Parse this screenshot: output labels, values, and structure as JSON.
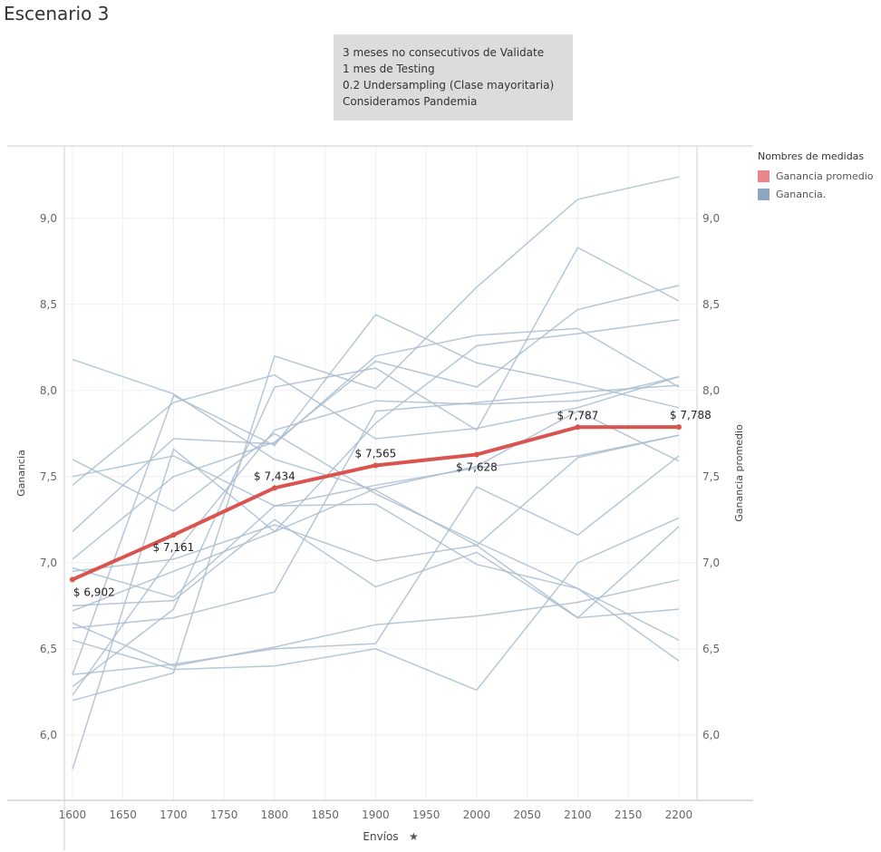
{
  "page": {
    "title": "Escenario 3",
    "note_lines": [
      "3 meses no consecutivos de Validate",
      "1 mes de Testing",
      "0.2 Undersampling (Clase mayoritaria)",
      "Consideramos Pandemia"
    ]
  },
  "legend": {
    "title": "Nombres de medidas",
    "items": [
      {
        "label": "Ganancia promedio",
        "color": "#e8868a"
      },
      {
        "label": "Ganancia.",
        "color": "#8aa6c1"
      }
    ]
  },
  "chart_data": {
    "type": "line",
    "xlabel": "Envíos",
    "ylabel_left": "Ganancia",
    "ylabel_right": "Ganancia promedio",
    "x_ticks": [
      1600,
      1650,
      1700,
      1750,
      1800,
      1850,
      1900,
      1950,
      2000,
      2050,
      2100,
      2150,
      2200
    ],
    "y_ticks": [
      "6,0",
      "6,5",
      "7,0",
      "7,5",
      "8,0",
      "8,5",
      "9,0"
    ],
    "y_tick_values": [
      6.0,
      6.5,
      7.0,
      7.5,
      8.0,
      8.5,
      9.0
    ],
    "xlim": [
      1592,
      2218
    ],
    "ylim": [
      5.62,
      9.42
    ],
    "grid": true,
    "legend_position": "top-right",
    "x": [
      1600,
      1700,
      1800,
      1900,
      2000,
      2100,
      2200
    ],
    "average_series": {
      "name": "Ganancia promedio",
      "color": "#d9534f",
      "values": [
        6.902,
        7.161,
        7.434,
        7.565,
        7.628,
        7.787,
        7.788
      ],
      "labels": [
        "$ 6,902",
        "$ 7,161",
        "$ 7,434",
        "$ 7,565",
        "$ 7,628",
        "$ 7,787",
        "$ 7,788"
      ]
    },
    "series_color": "#a9bdd0",
    "series": [
      {
        "values": [
          8.18,
          7.98,
          7.6,
          7.42,
          7.1,
          6.68,
          6.73
        ]
      },
      {
        "values": [
          7.6,
          7.3,
          7.75,
          7.4,
          7.12,
          6.85,
          6.55
        ]
      },
      {
        "values": [
          7.5,
          7.62,
          7.33,
          7.45,
          7.55,
          7.62,
          7.74
        ]
      },
      {
        "values": [
          7.45,
          7.93,
          8.09,
          7.72,
          7.78,
          7.9,
          8.08
        ]
      },
      {
        "values": [
          7.18,
          7.72,
          7.69,
          8.2,
          8.32,
          8.36,
          8.02
        ]
      },
      {
        "values": [
          7.02,
          7.5,
          7.7,
          8.17,
          8.02,
          8.47,
          8.61
        ]
      },
      {
        "values": [
          6.97,
          6.8,
          7.33,
          7.34,
          6.99,
          6.85,
          6.43
        ]
      },
      {
        "values": [
          6.95,
          7.02,
          7.22,
          7.01,
          7.1,
          7.61,
          7.74
        ]
      },
      {
        "values": [
          6.75,
          6.78,
          7.25,
          6.86,
          7.06,
          6.68,
          7.21
        ]
      },
      {
        "values": [
          6.72,
          6.95,
          7.18,
          7.43,
          7.56,
          7.88,
          7.59
        ]
      },
      {
        "values": [
          6.65,
          6.4,
          6.51,
          6.64,
          6.69,
          6.77,
          6.9
        ]
      },
      {
        "values": [
          6.62,
          6.68,
          6.83,
          7.88,
          7.93,
          7.99,
          8.03
        ]
      },
      {
        "values": [
          6.35,
          6.41,
          6.5,
          6.53,
          7.44,
          7.16,
          7.62
        ]
      },
      {
        "values": [
          6.28,
          6.73,
          8.02,
          8.13,
          7.77,
          8.83,
          8.52
        ]
      },
      {
        "values": [
          6.23,
          7.05,
          7.77,
          7.94,
          7.92,
          7.94,
          8.08
        ]
      },
      {
        "values": [
          6.2,
          6.36,
          8.2,
          8.01,
          8.6,
          9.11,
          9.24
        ]
      },
      {
        "values": [
          6.35,
          7.97,
          7.68,
          8.44,
          8.16,
          8.04,
          7.9
        ]
      },
      {
        "values": [
          5.8,
          7.66,
          7.18,
          7.81,
          8.26,
          8.33,
          8.41
        ]
      },
      {
        "values": [
          6.55,
          6.38,
          6.4,
          6.5,
          6.26,
          7.0,
          7.26
        ]
      }
    ]
  }
}
